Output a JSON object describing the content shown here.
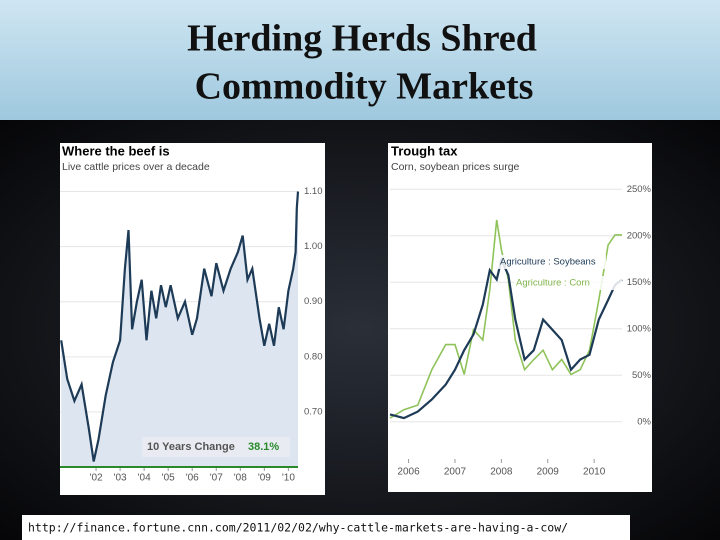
{
  "title": [
    "Herding Herds Shred",
    "Commodity Markets"
  ],
  "source": "http://finance.fortune.cnn.com/2011/02/02/why-cattle-markets-are-having-a-cow/",
  "chart_data": [
    {
      "type": "area",
      "title": "Where the beef is",
      "subtitle": "Live cattle prices over a decade",
      "annotations": [
        "10 Years Change",
        "38.1%"
      ],
      "color": "#1d3a56",
      "x": [
        2000.55,
        2000.8,
        2001.1,
        2001.4,
        2001.7,
        2001.9,
        2002.1,
        2002.4,
        2002.7,
        2003.0,
        2003.2,
        2003.35,
        2003.5,
        2003.7,
        2003.9,
        2004.1,
        2004.3,
        2004.5,
        2004.7,
        2004.9,
        2005.1,
        2005.4,
        2005.7,
        2006.0,
        2006.2,
        2006.5,
        2006.8,
        2007.0,
        2007.3,
        2007.6,
        2007.9,
        2008.1,
        2008.3,
        2008.5,
        2008.8,
        2009.0,
        2009.2,
        2009.4,
        2009.6,
        2009.8,
        2010.0,
        2010.2,
        2010.3,
        2010.35,
        2010.4
      ],
      "values": [
        0.83,
        0.76,
        0.72,
        0.75,
        0.67,
        0.61,
        0.65,
        0.73,
        0.79,
        0.83,
        0.96,
        1.03,
        0.85,
        0.9,
        0.94,
        0.83,
        0.92,
        0.87,
        0.93,
        0.89,
        0.93,
        0.87,
        0.9,
        0.84,
        0.87,
        0.96,
        0.91,
        0.97,
        0.92,
        0.96,
        0.99,
        1.02,
        0.94,
        0.96,
        0.87,
        0.82,
        0.86,
        0.82,
        0.89,
        0.85,
        0.92,
        0.96,
        0.99,
        1.07,
        1.1
      ],
      "xlim": [
        2000.5,
        2010.4
      ],
      "xticks": [
        {
          "value": 2002,
          "label": "'02"
        },
        {
          "value": 2003,
          "label": "'03"
        },
        {
          "value": 2004,
          "label": "'04"
        },
        {
          "value": 2005,
          "label": "'05"
        },
        {
          "value": 2006,
          "label": "'06"
        },
        {
          "value": 2007,
          "label": "'07"
        },
        {
          "value": 2008,
          "label": "'08"
        },
        {
          "value": 2009,
          "label": "'09"
        },
        {
          "value": 2010,
          "label": "'10"
        }
      ],
      "ylim": [
        0.6,
        1.15
      ],
      "yticks": [
        {
          "value": 0.7,
          "label": "0.70"
        },
        {
          "value": 0.8,
          "label": "0.80"
        },
        {
          "value": 0.9,
          "label": "0.90"
        },
        {
          "value": 1.0,
          "label": "1.00"
        },
        {
          "value": 1.1,
          "label": "1.10"
        }
      ]
    },
    {
      "type": "line",
      "title": "Trough tax",
      "subtitle": "Corn, soybean prices surge",
      "x": [
        2005.6,
        2005.9,
        2006.2,
        2006.5,
        2006.8,
        2007.0,
        2007.2,
        2007.4,
        2007.6,
        2007.75,
        2007.9,
        2008.0,
        2008.15,
        2008.3,
        2008.5,
        2008.7,
        2008.9,
        2009.1,
        2009.3,
        2009.5,
        2009.7,
        2009.9,
        2010.1,
        2010.3,
        2010.45,
        2010.6
      ],
      "series": [
        {
          "name": "Agriculture : Soybeans",
          "color": "#1d3a56",
          "values": [
            8,
            4,
            11,
            24,
            40,
            56,
            77,
            94,
            126,
            163,
            153,
            174,
            158,
            110,
            67,
            77,
            110,
            99,
            88,
            56,
            67,
            72,
            110,
            131,
            147,
            153
          ]
        },
        {
          "name": "Agriculture : Corn",
          "color": "#8fc35a",
          "values": [
            4,
            13,
            18,
            56,
            83,
            83,
            51,
            99,
            88,
            142,
            217,
            185,
            153,
            88,
            56,
            67,
            77,
            56,
            67,
            51,
            56,
            77,
            131,
            190,
            201,
            201
          ]
        }
      ],
      "xlim": [
        2005.6,
        2010.6
      ],
      "xticks": [
        2006,
        2007,
        2008,
        2009,
        2010
      ],
      "ylim": [
        -40,
        260
      ],
      "yticks": [
        {
          "value": 0,
          "label": "0%"
        },
        {
          "value": 50,
          "label": "50%"
        },
        {
          "value": 100,
          "label": "100%"
        },
        {
          "value": 150,
          "label": "150%"
        },
        {
          "value": 200,
          "label": "200%"
        },
        {
          "value": 250,
          "label": "250%"
        }
      ]
    }
  ]
}
